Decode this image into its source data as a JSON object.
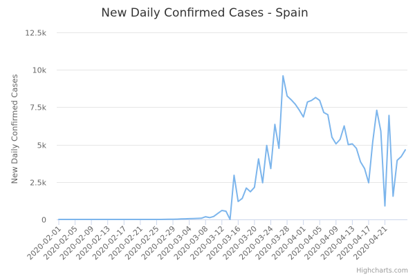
{
  "chart_data": {
    "type": "line",
    "title": "New Daily Confirmed Cases - Spain",
    "xlabel": "",
    "ylabel": "New Daily Confirmed Cases",
    "ylim": [
      0,
      12500
    ],
    "y_ticks": [
      {
        "value": 0,
        "label": "0"
      },
      {
        "value": 2500,
        "label": "2.5k"
      },
      {
        "value": 5000,
        "label": "5k"
      },
      {
        "value": 7500,
        "label": "7.5k"
      },
      {
        "value": 10000,
        "label": "10k"
      },
      {
        "value": 12500,
        "label": "12.5k"
      }
    ],
    "x_tick_labels": [
      "2020-02-01",
      "2020-02-05",
      "2020-02-09",
      "2020-02-13",
      "2020-02-17",
      "2020-02-21",
      "2020-02-25",
      "2020-02-29",
      "2020-03-04",
      "2020-03-08",
      "2020-03-12",
      "2020-03-16",
      "2020-03-20",
      "2020-03-24",
      "2020-03-28",
      "2020-04-01",
      "2020-04-05",
      "2020-04-09",
      "2020-04-13",
      "2020-04-17",
      "2020-04-21"
    ],
    "x_start": "2020-02-01",
    "grid": true,
    "legend": "none",
    "series": [
      {
        "color": "#7cb5ec",
        "values": [
          0,
          0,
          0,
          0,
          0,
          0,
          0,
          0,
          0,
          0,
          0,
          0,
          0,
          0,
          0,
          0,
          0,
          0,
          0,
          0,
          0,
          0,
          0,
          0,
          0,
          2,
          5,
          10,
          15,
          20,
          30,
          40,
          50,
          60,
          70,
          80,
          180,
          120,
          200,
          400,
          600,
          550,
          0,
          2950,
          1200,
          1400,
          2100,
          1850,
          2150,
          4050,
          2450,
          4950,
          3400,
          6350,
          4750,
          9600,
          8250,
          8000,
          7700,
          7300,
          6850,
          7850,
          7950,
          8150,
          7950,
          7150,
          7000,
          5500,
          5050,
          5350,
          6250,
          5000,
          5050,
          4750,
          3850,
          3400,
          2450,
          5150,
          7300,
          5900,
          900,
          6950,
          1550,
          3950,
          4200,
          4650
        ]
      }
    ]
  },
  "credits": "Highcharts.com"
}
